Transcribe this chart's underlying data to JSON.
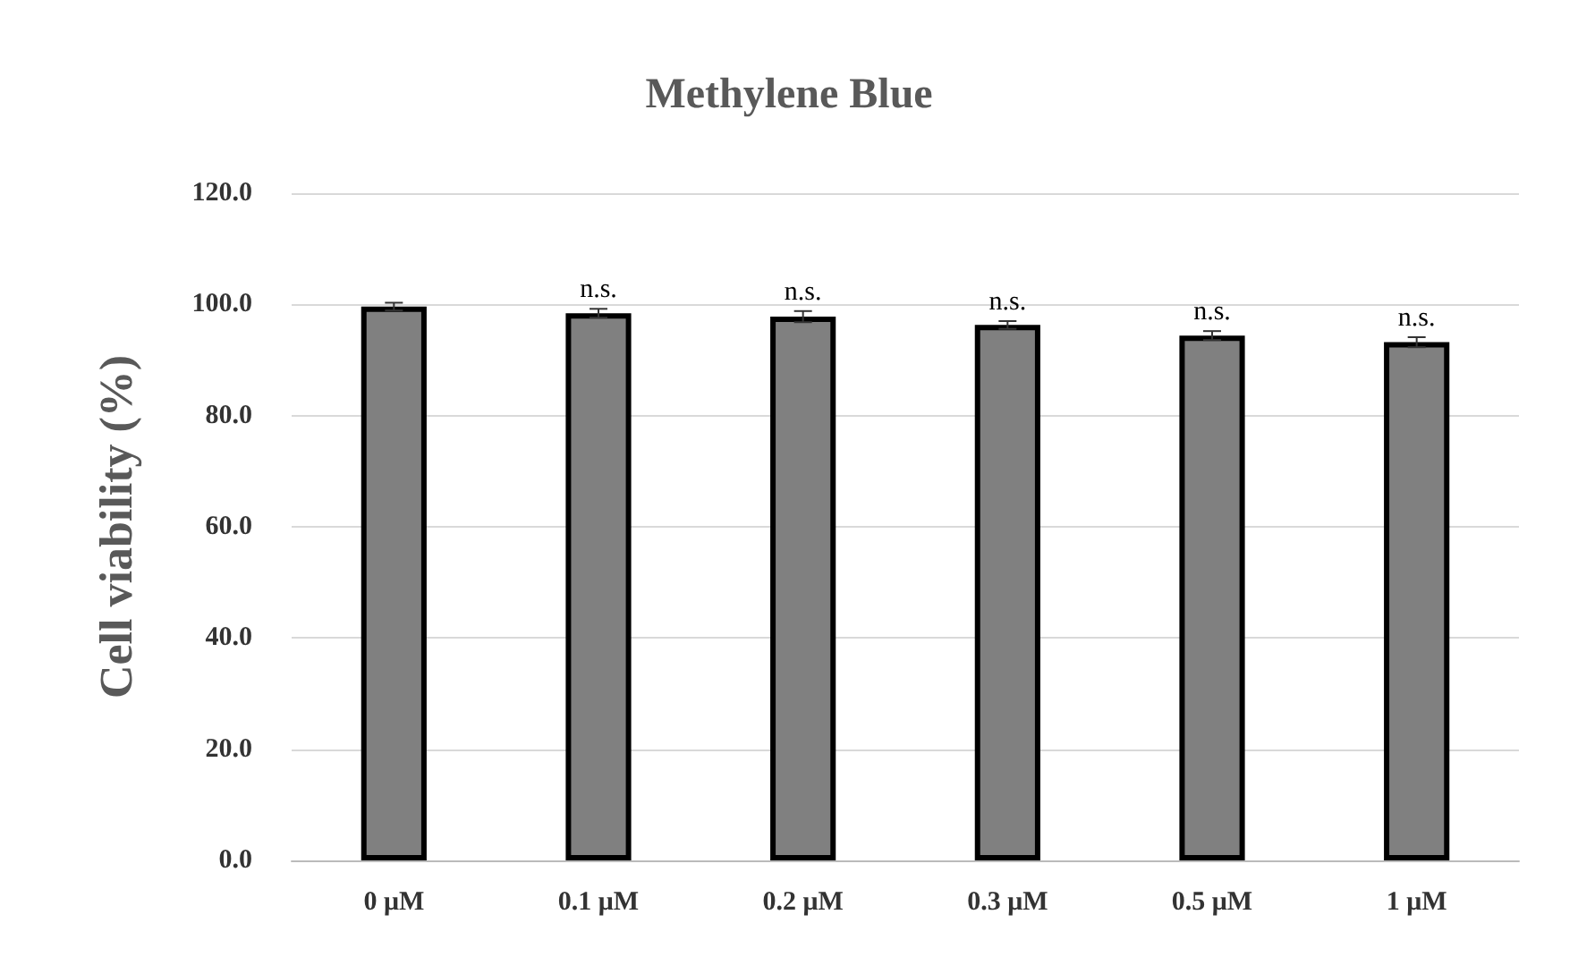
{
  "chart_data": {
    "type": "bar",
    "title": "Methylene Blue",
    "ylabel": "Cell viability (%)",
    "categories": [
      "0 μM",
      "0.1 μM",
      "0.2 μM",
      "0.3 μM",
      "0.5 μM",
      "1 μM"
    ],
    "values": [
      99.6,
      98.4,
      97.8,
      96.3,
      94.4,
      93.2
    ],
    "errors": [
      0.7,
      0.8,
      1.0,
      0.7,
      0.8,
      0.9
    ],
    "color": "#808080",
    "ylim": [
      0,
      120
    ],
    "yticks": [
      {
        "value": 0,
        "label": "0.0"
      },
      {
        "value": 20,
        "label": "20.0"
      },
      {
        "value": 40,
        "label": "40.0"
      },
      {
        "value": 60,
        "label": "60.0"
      },
      {
        "value": 80,
        "label": "80.0"
      },
      {
        "value": 100,
        "label": "100.0"
      },
      {
        "value": 120,
        "label": "120.0"
      }
    ],
    "grid": "y",
    "annotations": [
      {
        "text": "n.s.",
        "x": "0.1 μM",
        "y": 98.4
      },
      {
        "text": "n.s.",
        "x": "0.2 μM",
        "y": 97.8
      },
      {
        "text": "n.s.",
        "x": "0.3 μM",
        "y": 96.3
      },
      {
        "text": "n.s.",
        "x": "0.5 μM",
        "y": 94.4
      },
      {
        "text": "n.s.",
        "x": "1 μM",
        "y": 93.2
      }
    ]
  }
}
